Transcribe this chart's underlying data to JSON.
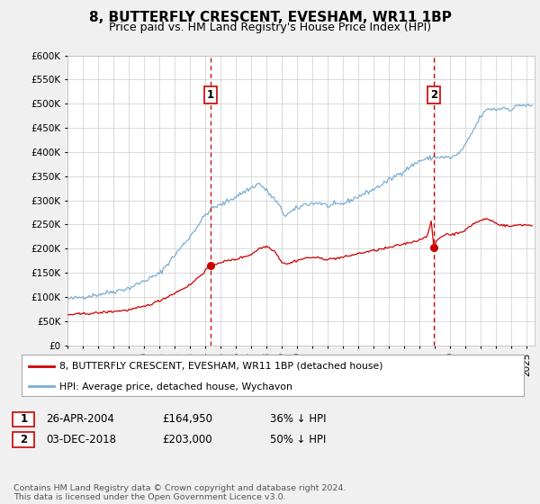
{
  "title": "8, BUTTERFLY CRESCENT, EVESHAM, WR11 1BP",
  "subtitle": "Price paid vs. HM Land Registry's House Price Index (HPI)",
  "ylim": [
    0,
    600000
  ],
  "yticks": [
    0,
    50000,
    100000,
    150000,
    200000,
    250000,
    300000,
    350000,
    400000,
    450000,
    500000,
    550000,
    600000
  ],
  "ytick_labels": [
    "£0",
    "£50K",
    "£100K",
    "£150K",
    "£200K",
    "£250K",
    "£300K",
    "£350K",
    "£400K",
    "£450K",
    "£500K",
    "£550K",
    "£600K"
  ],
  "xlim_start": 1995.0,
  "xlim_end": 2025.5,
  "xticks": [
    1995,
    1996,
    1997,
    1998,
    1999,
    2000,
    2001,
    2002,
    2003,
    2004,
    2005,
    2006,
    2007,
    2008,
    2009,
    2010,
    2011,
    2012,
    2013,
    2014,
    2015,
    2016,
    2017,
    2018,
    2019,
    2020,
    2021,
    2022,
    2023,
    2024,
    2025
  ],
  "background_color": "#f0f0f0",
  "plot_bg_color": "#ffffff",
  "grid_color": "#cccccc",
  "red_line_color": "#cc0000",
  "blue_line_color": "#7aadd4",
  "sale1_x": 2004.32,
  "sale1_y": 164950,
  "sale2_x": 2018.92,
  "sale2_y": 203000,
  "legend_label_red": "8, BUTTERFLY CRESCENT, EVESHAM, WR11 1BP (detached house)",
  "legend_label_blue": "HPI: Average price, detached house, Wychavon",
  "table_row1": [
    "1",
    "26-APR-2004",
    "£164,950",
    "36% ↓ HPI"
  ],
  "table_row2": [
    "2",
    "03-DEC-2018",
    "£203,000",
    "50% ↓ HPI"
  ],
  "footnote": "Contains HM Land Registry data © Crown copyright and database right 2024.\nThis data is licensed under the Open Government Licence v3.0.",
  "title_fontsize": 11,
  "subtitle_fontsize": 9
}
